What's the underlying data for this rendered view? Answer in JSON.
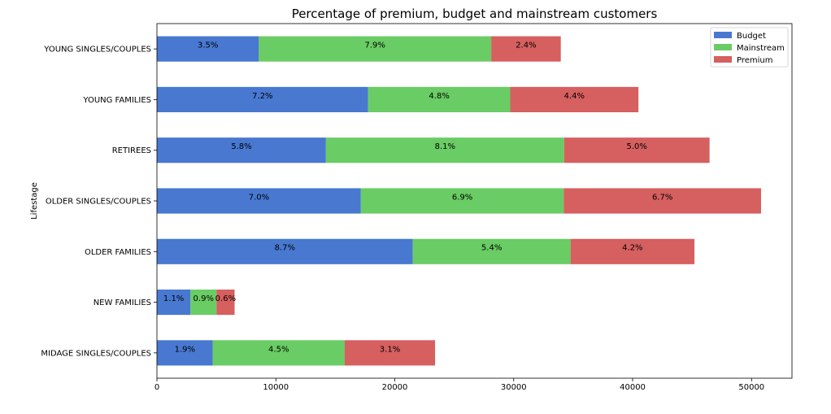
{
  "chart_data": {
    "type": "bar",
    "orientation": "horizontal",
    "stacked": true,
    "title": "Percentage of premium, budget and mainstream customers",
    "xlabel": "",
    "ylabel": "Lifestage",
    "xlim": [
      0,
      53400
    ],
    "xticks": [
      "0",
      "10000",
      "20000",
      "30000",
      "40000",
      "50000"
    ],
    "xtick_values": [
      0,
      10000,
      20000,
      30000,
      40000,
      50000
    ],
    "categories": [
      "MIDAGE SINGLES/COUPLES",
      "NEW FAMILIES",
      "OLDER FAMILIES",
      "OLDER SINGLES/COUPLES",
      "RETIREES",
      "YOUNG FAMILIES",
      "YOUNG SINGLES/COUPLES"
    ],
    "series": [
      {
        "name": "Budget",
        "color": "#4878d0",
        "values": [
          4690,
          2820,
          21510,
          17150,
          14210,
          17760,
          8570
        ],
        "labels": [
          "1.9%",
          "1.1%",
          "8.7%",
          "7.0%",
          "5.8%",
          "7.2%",
          "3.5%"
        ]
      },
      {
        "name": "Mainstream",
        "color": "#6acc64",
        "values": [
          11100,
          2190,
          13270,
          17060,
          20030,
          11950,
          19540
        ],
        "labels": [
          "4.5%",
          "0.9%",
          "5.4%",
          "6.9%",
          "8.1%",
          "4.8%",
          "7.9%"
        ]
      },
      {
        "name": "Premium",
        "color": "#d65f5f",
        "values": [
          7600,
          1520,
          10420,
          16590,
          12230,
          10780,
          5850
        ],
        "labels": [
          "3.1%",
          "0.6%",
          "4.2%",
          "6.7%",
          "5.0%",
          "4.4%",
          "2.4%"
        ]
      }
    ],
    "grid": false,
    "legend_position": "top-right"
  }
}
